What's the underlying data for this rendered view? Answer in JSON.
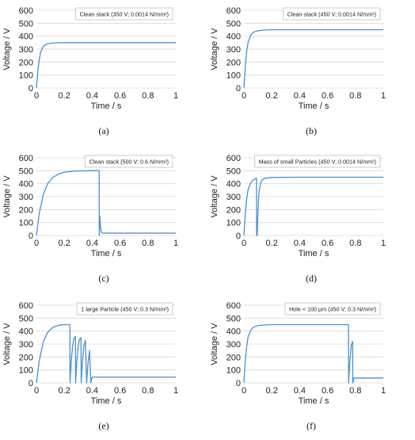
{
  "series_color": "#4a90d0",
  "chart_data": [
    {
      "type": "line",
      "id": "a",
      "caption": "(a)",
      "legend": "Clean stack (350 V; 0.0014 N/mm²)",
      "xlabel": "Time / s",
      "ylabel": "Voltage / V",
      "xlim": [
        0,
        1
      ],
      "ylim": [
        0,
        600
      ],
      "xticks": [
        "0",
        "0.2",
        "0.4",
        "0.6",
        "0.8",
        "1"
      ],
      "yticks": [
        "0",
        "100",
        "200",
        "300",
        "400",
        "500",
        "600"
      ],
      "grid": true,
      "legend_position": "top-right",
      "series": [
        {
          "x": [
            0,
            0.01,
            0.02,
            0.03,
            0.05,
            0.07,
            0.1,
            0.14,
            0.2,
            0.4,
            0.6,
            0.8,
            1
          ],
          "y": [
            0,
            130,
            220,
            275,
            322,
            338,
            346,
            349,
            350,
            350,
            350,
            350,
            350
          ]
        }
      ]
    },
    {
      "type": "line",
      "id": "b",
      "caption": "(b)",
      "legend": "Clean stack (450 V; 0.0014 N/mm²)",
      "xlabel": "Time / s",
      "ylabel": "Voltage / V",
      "xlim": [
        0,
        1
      ],
      "ylim": [
        0,
        600
      ],
      "xticks": [
        "0",
        "0.2",
        "0.4",
        "0.6",
        "0.8",
        "1"
      ],
      "yticks": [
        "0",
        "100",
        "200",
        "300",
        "400",
        "500",
        "600"
      ],
      "grid": true,
      "legend_position": "top-right",
      "series": [
        {
          "x": [
            0,
            0.01,
            0.02,
            0.03,
            0.05,
            0.07,
            0.1,
            0.14,
            0.2,
            0.4,
            0.6,
            0.8,
            1
          ],
          "y": [
            0,
            170,
            285,
            355,
            410,
            432,
            442,
            447,
            450,
            450,
            450,
            450,
            450
          ]
        }
      ]
    },
    {
      "type": "line",
      "id": "c",
      "caption": "(c)",
      "legend": "Clean stack (500 V; 0.6 N/mm²)",
      "xlabel": "Time / s",
      "ylabel": "Voltage / V",
      "xlim": [
        0,
        1
      ],
      "ylim": [
        0,
        600
      ],
      "xticks": [
        "0",
        "0.2",
        "0.4",
        "0.6",
        "0.8",
        "1"
      ],
      "yticks": [
        "0",
        "100",
        "200",
        "300",
        "400",
        "500",
        "600"
      ],
      "grid": true,
      "legend_position": "top-right",
      "series": [
        {
          "x": [
            0,
            0.02,
            0.05,
            0.08,
            0.12,
            0.16,
            0.2,
            0.25,
            0.3,
            0.4,
            0.45,
            0.451,
            0.455,
            0.46,
            0.465,
            0.47,
            0.48,
            0.5,
            0.6,
            0.8,
            1
          ],
          "y": [
            0,
            170,
            320,
            400,
            450,
            475,
            488,
            495,
            498,
            500,
            500,
            0,
            150,
            60,
            30,
            20,
            18,
            18,
            18,
            18,
            18
          ]
        }
      ]
    },
    {
      "type": "line",
      "id": "d",
      "caption": "(d)",
      "legend": "Mass of small Particles (450 V; 0.0014 N/mm²)",
      "xlabel": "Time / s",
      "ylabel": "Voltage / V",
      "xlim": [
        0,
        1
      ],
      "ylim": [
        0,
        600
      ],
      "xticks": [
        "0",
        "0.2",
        "0.4",
        "0.6",
        "0.8",
        "1"
      ],
      "yticks": [
        "0",
        "100",
        "200",
        "300",
        "400",
        "500",
        "600"
      ],
      "grid": true,
      "legend_position": "top-right",
      "series": [
        {
          "x": [
            0,
            0.01,
            0.02,
            0.03,
            0.05,
            0.07,
            0.09,
            0.091,
            0.095,
            0.1,
            0.105,
            0.11,
            0.12,
            0.13,
            0.15,
            0.2,
            0.4,
            0.6,
            0.8,
            1
          ],
          "y": [
            0,
            170,
            285,
            355,
            410,
            432,
            442,
            0,
            0,
            160,
            280,
            350,
            405,
            428,
            442,
            448,
            450,
            450,
            450,
            450
          ]
        }
      ]
    },
    {
      "type": "line",
      "id": "e",
      "caption": "(e)",
      "legend": "1 large Particle (450 V; 0.3 N/mm²)",
      "xlabel": "Time / s",
      "ylabel": "Voltage / V",
      "xlim": [
        0,
        1
      ],
      "ylim": [
        0,
        600
      ],
      "xticks": [
        "0",
        "0.2",
        "0.4",
        "0.6",
        "0.8",
        "1"
      ],
      "yticks": [
        "0",
        "100",
        "200",
        "300",
        "400",
        "500",
        "600"
      ],
      "grid": true,
      "legend_position": "top-right",
      "series": [
        {
          "x": [
            0,
            0.02,
            0.05,
            0.08,
            0.12,
            0.16,
            0.2,
            0.24,
            0.241,
            0.25,
            0.26,
            0.27,
            0.28,
            0.281,
            0.29,
            0.3,
            0.31,
            0.32,
            0.321,
            0.33,
            0.34,
            0.35,
            0.351,
            0.36,
            0.37,
            0.38,
            0.381,
            0.39,
            0.4,
            0.5,
            0.6,
            0.7,
            0.8,
            0.9,
            1
          ],
          "y": [
            0,
            170,
            320,
            390,
            430,
            445,
            450,
            450,
            0,
            170,
            290,
            345,
            360,
            0,
            170,
            290,
            340,
            350,
            0,
            160,
            280,
            325,
            330,
            0,
            150,
            240,
            250,
            0,
            45,
            45,
            45,
            45,
            45,
            45,
            45
          ]
        }
      ]
    },
    {
      "type": "line",
      "id": "f",
      "caption": "(f)",
      "legend": "Hole < 100 µm (450 V; 0.3 N/mm²)",
      "xlabel": "Time / s",
      "ylabel": "Voltage / V",
      "xlim": [
        0,
        1
      ],
      "ylim": [
        0,
        600
      ],
      "xticks": [
        "0",
        "0.2",
        "0.4",
        "0.6",
        "0.8",
        "1"
      ],
      "yticks": [
        "0",
        "100",
        "200",
        "300",
        "400",
        "500",
        "600"
      ],
      "grid": true,
      "legend_position": "top-right",
      "series": [
        {
          "x": [
            0,
            0.01,
            0.02,
            0.03,
            0.05,
            0.07,
            0.1,
            0.14,
            0.2,
            0.4,
            0.6,
            0.75,
            0.751,
            0.76,
            0.77,
            0.78,
            0.781,
            0.79,
            0.8,
            0.9,
            1
          ],
          "y": [
            0,
            170,
            285,
            355,
            410,
            432,
            442,
            447,
            450,
            450,
            450,
            450,
            0,
            170,
            290,
            320,
            0,
            38,
            38,
            38,
            38
          ]
        }
      ]
    }
  ]
}
